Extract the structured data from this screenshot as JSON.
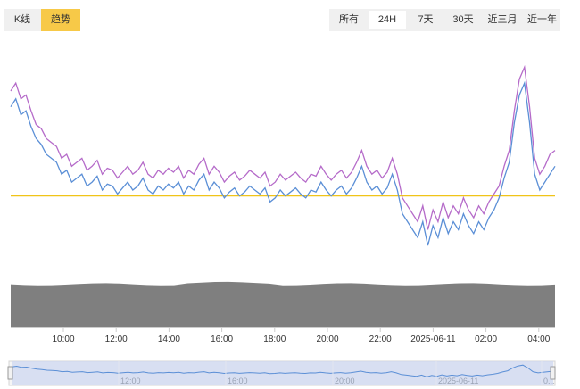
{
  "view_tabs": [
    {
      "label": "K线",
      "active": false
    },
    {
      "label": "趋势",
      "active": true
    }
  ],
  "ranges": [
    {
      "label": "所有",
      "active": false
    },
    {
      "label": "24H",
      "active": true
    },
    {
      "label": "7天",
      "active": false
    },
    {
      "label": "30天",
      "active": false
    },
    {
      "label": "近三月",
      "active": false
    },
    {
      "label": "近一年",
      "active": false
    }
  ],
  "colors": {
    "series_purple": "#b56bc9",
    "series_blue": "#5b8fd6",
    "reference_line": "#f0c419",
    "volume": "#7f7f7f",
    "navigator_fill": "#cdd7f0",
    "active_tab": "#f7c948"
  },
  "chart_data": {
    "type": "line",
    "x_tick_labels": [
      "10:00",
      "12:00",
      "14:00",
      "16:00",
      "18:00",
      "20:00",
      "22:00",
      "2025-06-11",
      "02:00",
      "04:00"
    ],
    "series": [
      {
        "values": [
          82,
          86,
          78,
          80,
          72,
          65,
          63,
          58,
          56,
          54,
          48,
          50,
          44,
          46,
          48,
          42,
          44,
          47,
          40,
          43,
          42,
          38,
          41,
          44,
          40,
          42,
          46,
          40,
          38,
          42,
          40,
          43,
          41,
          44,
          38,
          42,
          40,
          45,
          48,
          40,
          44,
          41,
          36,
          39,
          41,
          37,
          39,
          42,
          40,
          38,
          41,
          34,
          36,
          40,
          37,
          39,
          41,
          38,
          36,
          40,
          39,
          44,
          40,
          37,
          40,
          42,
          38,
          41,
          46,
          52,
          44,
          40,
          42,
          38,
          41,
          48,
          40,
          28,
          24,
          20,
          16,
          24,
          12,
          22,
          16,
          26,
          18,
          24,
          20,
          28,
          22,
          18,
          24,
          20,
          26,
          30,
          34,
          44,
          52,
          72,
          88,
          94,
          74,
          48,
          40,
          44,
          50,
          52
        ]
      },
      {
        "values": [
          74,
          78,
          70,
          72,
          64,
          58,
          55,
          50,
          48,
          46,
          40,
          42,
          36,
          38,
          40,
          34,
          36,
          39,
          32,
          35,
          34,
          30,
          33,
          36,
          32,
          34,
          38,
          32,
          30,
          34,
          32,
          35,
          33,
          36,
          30,
          34,
          32,
          37,
          40,
          32,
          36,
          33,
          28,
          31,
          33,
          29,
          31,
          34,
          32,
          30,
          33,
          26,
          28,
          32,
          29,
          31,
          33,
          30,
          28,
          32,
          31,
          36,
          32,
          29,
          32,
          34,
          30,
          33,
          38,
          44,
          36,
          32,
          34,
          30,
          33,
          40,
          32,
          20,
          16,
          12,
          8,
          16,
          4,
          14,
          8,
          18,
          10,
          16,
          12,
          20,
          14,
          10,
          16,
          12,
          18,
          22,
          28,
          38,
          46,
          66,
          80,
          86,
          66,
          40,
          32,
          36,
          40,
          44
        ]
      }
    ],
    "reference_level": 29,
    "volume_level": 70,
    "navigator_tick_labels": [
      "12:00",
      "16:00",
      "20:00",
      "2025-06-11",
      "0..."
    ]
  }
}
